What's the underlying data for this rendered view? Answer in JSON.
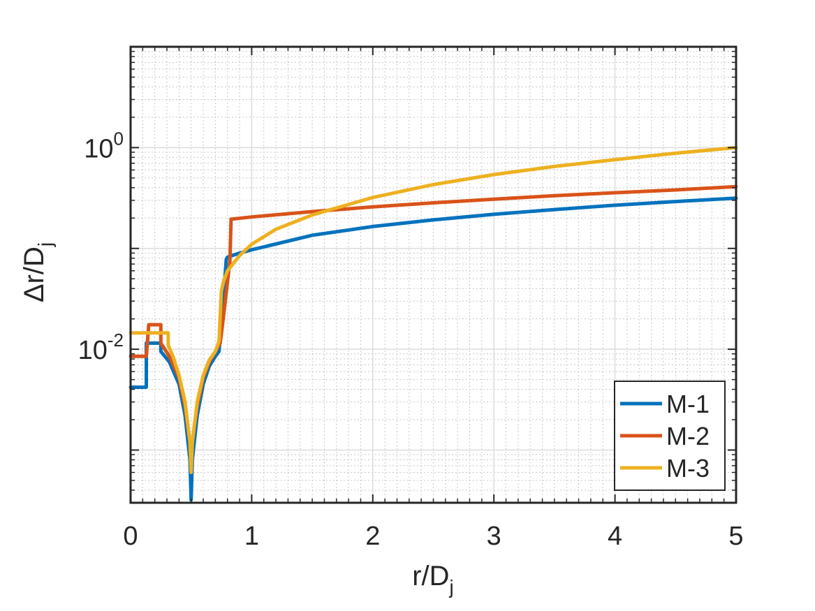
{
  "chart_data": {
    "type": "line",
    "xlabel": {
      "base": "r/D",
      "sub": "j"
    },
    "ylabel": {
      "base": "Δr/D",
      "sub": "j"
    },
    "xlim": [
      0,
      5
    ],
    "ylim": [
      0.0003,
      10
    ],
    "yscale": "log",
    "grid": true,
    "minor_grid": true,
    "legend_position": "bottom-right",
    "x_ticks": [
      {
        "value": 0,
        "label": "0"
      },
      {
        "value": 1,
        "label": "1"
      },
      {
        "value": 2,
        "label": "2"
      },
      {
        "value": 3,
        "label": "3"
      },
      {
        "value": 4,
        "label": "4"
      },
      {
        "value": 5,
        "label": "5"
      }
    ],
    "y_ticks": [
      {
        "value": 0.01,
        "base": "10",
        "exp": "-2"
      },
      {
        "value": 1,
        "base": "10",
        "exp": "0"
      }
    ],
    "series": [
      {
        "name": "M-1",
        "color": "#0072BD",
        "x": [
          0,
          0.13,
          0.13,
          0.25,
          0.25,
          0.32,
          0.4,
          0.45,
          0.49,
          0.5,
          0.51,
          0.55,
          0.6,
          0.65,
          0.7,
          0.73,
          0.76,
          0.79,
          0.8,
          0.9,
          1.0,
          1.5,
          2.0,
          2.5,
          3.0,
          3.5,
          4.0,
          4.5,
          5.0
        ],
        "y": [
          0.0042,
          0.0042,
          0.0115,
          0.0115,
          0.0095,
          0.0075,
          0.0045,
          0.0022,
          0.0008,
          0.00032,
          0.0008,
          0.0022,
          0.0045,
          0.0068,
          0.0085,
          0.0095,
          0.025,
          0.078,
          0.082,
          0.09,
          0.097,
          0.135,
          0.165,
          0.192,
          0.218,
          0.243,
          0.268,
          0.292,
          0.315
        ]
      },
      {
        "name": "M-2",
        "color": "#D95319",
        "x": [
          0,
          0.13,
          0.13,
          0.15,
          0.25,
          0.25,
          0.32,
          0.4,
          0.45,
          0.49,
          0.5,
          0.51,
          0.55,
          0.6,
          0.65,
          0.7,
          0.74,
          0.76,
          0.82,
          0.83,
          1.0,
          1.5,
          2.0,
          2.5,
          3.0,
          3.5,
          4.0,
          4.5,
          5.0
        ],
        "y": [
          0.0085,
          0.0085,
          0.0085,
          0.0175,
          0.0175,
          0.0115,
          0.0085,
          0.0052,
          0.0027,
          0.0012,
          0.0008,
          0.0012,
          0.0027,
          0.0052,
          0.0075,
          0.0095,
          0.0115,
          0.018,
          0.075,
          0.195,
          0.205,
          0.232,
          0.258,
          0.283,
          0.308,
          0.333,
          0.357,
          0.38,
          0.41
        ]
      },
      {
        "name": "M-3",
        "color": "#EDB120",
        "x": [
          0,
          0.31,
          0.31,
          0.35,
          0.4,
          0.45,
          0.49,
          0.5,
          0.51,
          0.55,
          0.6,
          0.65,
          0.7,
          0.73,
          0.75,
          0.77,
          0.8,
          0.9,
          1.0,
          1.2,
          1.5,
          2.0,
          2.5,
          3.0,
          3.5,
          4.0,
          4.5,
          5.0
        ],
        "y": [
          0.0145,
          0.0145,
          0.011,
          0.0085,
          0.0055,
          0.003,
          0.0012,
          0.0006,
          0.0012,
          0.003,
          0.0055,
          0.0078,
          0.0095,
          0.012,
          0.038,
          0.048,
          0.06,
          0.085,
          0.11,
          0.155,
          0.215,
          0.32,
          0.43,
          0.54,
          0.65,
          0.76,
          0.88,
          1.0
        ]
      }
    ]
  }
}
